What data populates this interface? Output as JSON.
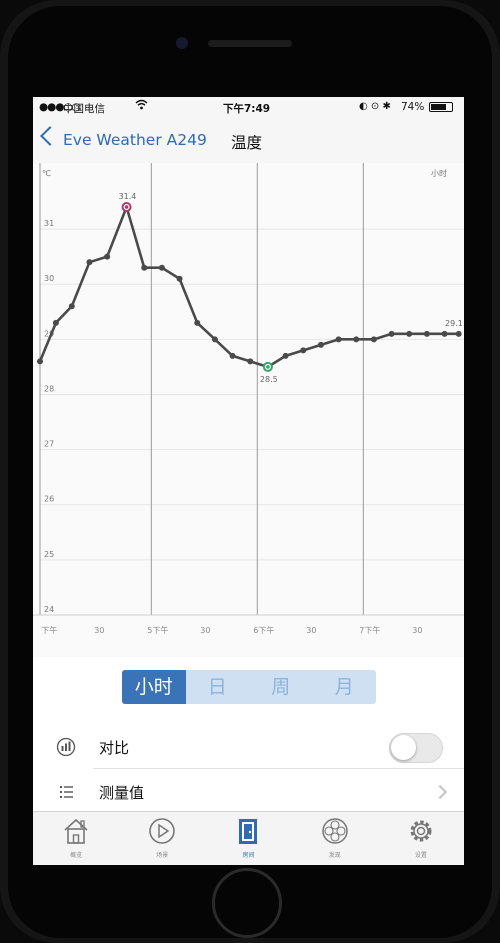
{
  "status_bar": {
    "signal": "●●●○○",
    "carrier": "中国电信",
    "wifi_icon": "wifi-icon",
    "time": "下午7:49",
    "icons": "◐ ⊙ ✱",
    "battery_text": "74%",
    "battery_level": 0.74
  },
  "nav": {
    "back_label": "Eve Weather A249",
    "title": "温度"
  },
  "chart": {
    "y_unit": "℃",
    "x_unit": "小时"
  },
  "chart_data": {
    "type": "line",
    "y_ticks": [
      "24",
      "25",
      "26",
      "27",
      "28",
      "29",
      "30",
      "31"
    ],
    "ylim": [
      24,
      31.8
    ],
    "x_tick_labels": [
      "下午",
      "30",
      "5下午",
      "30",
      "6下午",
      "30",
      "7下午",
      "30",
      "8"
    ],
    "x_ticks": [
      0,
      30,
      60,
      90,
      120,
      150,
      180,
      210,
      240
    ],
    "xlim": [
      -3,
      237
    ],
    "grid_verticals_x": [
      60,
      120,
      180
    ],
    "x": [
      -3,
      6,
      15,
      25,
      35,
      46,
      56,
      66,
      76,
      86,
      96,
      106,
      116,
      126,
      136,
      146,
      156,
      166,
      176,
      186,
      196,
      206,
      216,
      226,
      234
    ],
    "values": [
      28.6,
      29.3,
      29.6,
      30.4,
      30.5,
      31.4,
      30.3,
      30.3,
      30.1,
      29.3,
      29.0,
      28.7,
      28.6,
      28.5,
      28.7,
      28.8,
      28.9,
      29.0,
      29.0,
      29.0,
      29.1,
      29.1,
      29.1,
      29.1,
      29.1
    ],
    "annotations": [
      {
        "label": "31.4",
        "index": 5,
        "marker_color": "#b23a6a",
        "position": "above"
      },
      {
        "label": "28.5",
        "index": 13,
        "marker_color": "#3aa56b",
        "position": "below"
      },
      {
        "label": "29.1",
        "index": 24,
        "marker_color": "",
        "position": "above"
      }
    ],
    "line_color": "#4a4a4a"
  },
  "segments": [
    {
      "label": "小时",
      "active": true
    },
    {
      "label": "日",
      "active": false
    },
    {
      "label": "周",
      "active": false
    },
    {
      "label": "月",
      "active": false
    }
  ],
  "rows": [
    {
      "label": "对比",
      "icon": "compare-icon"
    },
    {
      "label": "测量值",
      "icon": "list-icon"
    }
  ],
  "toggle": {
    "on": false
  },
  "tabs": [
    {
      "label": "概览",
      "icon": "home-icon",
      "active": false
    },
    {
      "label": "场景",
      "icon": "play-icon",
      "active": false
    },
    {
      "label": "房间",
      "icon": "door-icon",
      "active": true
    },
    {
      "label": "发现",
      "icon": "flower-icon",
      "active": false
    },
    {
      "label": "设置",
      "icon": "gear-icon",
      "active": false
    }
  ]
}
